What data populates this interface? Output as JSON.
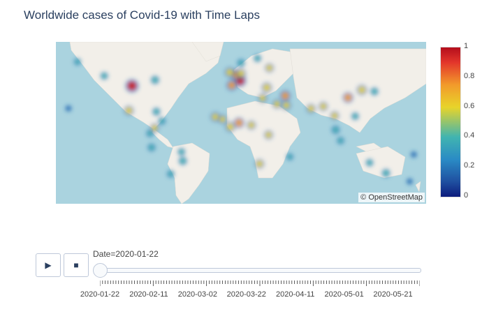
{
  "title": "Worldwide cases of Covid-19 with Time Laps",
  "map": {
    "attribution": "© OpenStreetMap",
    "land_color": "#f2efe9",
    "water_color": "#aad3df"
  },
  "colorbar": {
    "ticks": [
      "0",
      "0.2",
      "0.4",
      "0.6",
      "0.8",
      "1"
    ]
  },
  "controls": {
    "play_icon": "play-icon",
    "stop_icon": "stop-icon"
  },
  "slider": {
    "prefix": "Date=",
    "current": "2020-01-22",
    "tick_labels": [
      "2020-01-22",
      "2020-02-11",
      "2020-03-02",
      "2020-03-22",
      "2020-04-11",
      "2020-05-01",
      "2020-05-21"
    ]
  },
  "chart_data": {
    "type": "heatmap",
    "title": "Worldwide cases of Covid-19 with Time Laps",
    "colorscale_range": [
      0,
      1
    ],
    "frame": "2020-01-22",
    "points": [
      {
        "lat": 40.5,
        "lon": -96.0,
        "z": 1.0
      },
      {
        "lat": 45.0,
        "lon": 9.0,
        "z": 0.9
      },
      {
        "lat": 50.0,
        "lon": 5.0,
        "z": 0.75
      },
      {
        "lat": 41.0,
        "lon": 1.0,
        "z": 0.7
      },
      {
        "lat": 52.0,
        "lon": -1.0,
        "z": 0.6
      },
      {
        "lat": 51.0,
        "lon": 10.0,
        "z": 0.55
      },
      {
        "lat": 30.5,
        "lon": 114.0,
        "z": 0.65
      },
      {
        "lat": 37.0,
        "lon": 127.5,
        "z": 0.6
      },
      {
        "lat": 32.0,
        "lon": 53.0,
        "z": 0.7
      },
      {
        "lat": 39.0,
        "lon": 35.0,
        "z": 0.6
      },
      {
        "lat": 25.0,
        "lon": 45.0,
        "z": 0.5
      },
      {
        "lat": 24.0,
        "lon": 54.0,
        "z": 0.55
      },
      {
        "lat": 30.0,
        "lon": 31.0,
        "z": 0.5
      },
      {
        "lat": 9.0,
        "lon": 8.0,
        "z": 0.65
      },
      {
        "lat": 5.5,
        "lon": -0.5,
        "z": 0.6
      },
      {
        "lat": 12.0,
        "lon": -8.0,
        "z": 0.5
      },
      {
        "lat": 14.0,
        "lon": -15.0,
        "z": 0.55
      },
      {
        "lat": 7.0,
        "lon": 20.0,
        "z": 0.45
      },
      {
        "lat": 21.0,
        "lon": 78.0,
        "z": 0.5
      },
      {
        "lat": 23.0,
        "lon": 90.0,
        "z": 0.45
      },
      {
        "lat": 15.0,
        "lon": 101.0,
        "z": 0.45
      },
      {
        "lat": 3.0,
        "lon": 102.0,
        "z": 0.4
      },
      {
        "lat": 19.4,
        "lon": -99.1,
        "z": 0.55
      },
      {
        "lat": 4.6,
        "lon": -74.0,
        "z": 0.45
      },
      {
        "lat": -23.5,
        "lon": -46.6,
        "z": 0.4
      },
      {
        "lat": -12.0,
        "lon": -77.0,
        "z": 0.35
      },
      {
        "lat": -25.0,
        "lon": 135.0,
        "z": 0.3
      },
      {
        "lat": -33.9,
        "lon": 151.0,
        "z": 0.4
      },
      {
        "lat": -26.0,
        "lon": 28.0,
        "z": 0.5
      },
      {
        "lat": -1.3,
        "lon": 36.8,
        "z": 0.45
      },
      {
        "lat": 45.5,
        "lon": -73.6,
        "z": 0.4
      },
      {
        "lat": 49.0,
        "lon": -123.0,
        "z": 0.3
      },
      {
        "lat": 55.8,
        "lon": 37.6,
        "z": 0.45
      },
      {
        "lat": 64.0,
        "lon": 26.0,
        "z": 0.3
      },
      {
        "lat": 60.0,
        "lon": 10.0,
        "z": 0.35
      },
      {
        "lat": 35.7,
        "lon": 139.7,
        "z": 0.35
      },
      {
        "lat": 14.6,
        "lon": 121.0,
        "z": 0.3
      },
      {
        "lat": -6.2,
        "lon": 106.8,
        "z": 0.3
      },
      {
        "lat": 61.0,
        "lon": -149.0,
        "z": 0.25
      },
      {
        "lat": 21.3,
        "lon": -157.8,
        "z": 0.2
      },
      {
        "lat": -41.0,
        "lon": 174.0,
        "z": 0.2
      },
      {
        "lat": -18.0,
        "lon": 178.0,
        "z": 0.2
      },
      {
        "lat": -20.0,
        "lon": 57.5,
        "z": 0.25
      },
      {
        "lat": 18.5,
        "lon": -72.3,
        "z": 0.35
      },
      {
        "lat": 10.5,
        "lon": -66.9,
        "z": 0.3
      },
      {
        "lat": -34.6,
        "lon": -58.4,
        "z": 0.3
      },
      {
        "lat": -15.8,
        "lon": -47.9,
        "z": 0.3
      },
      {
        "lat": 0.0,
        "lon": -78.5,
        "z": 0.3
      }
    ]
  }
}
